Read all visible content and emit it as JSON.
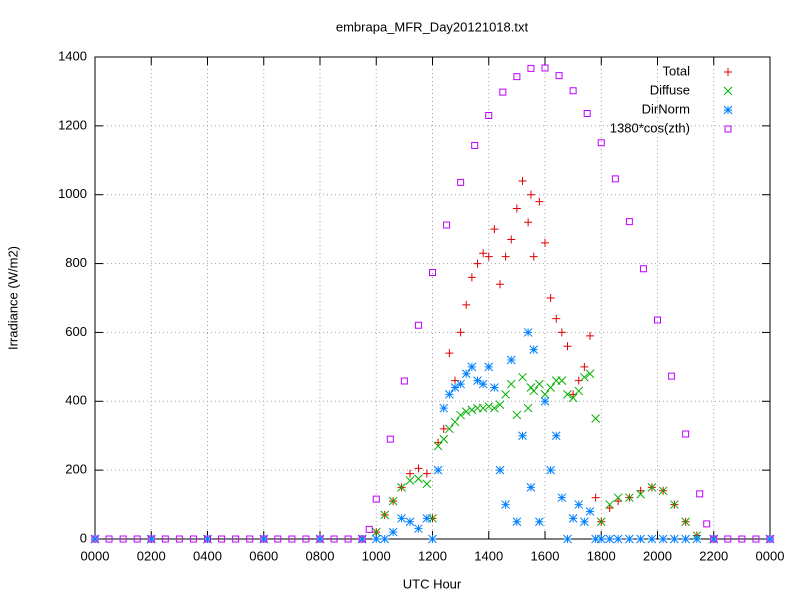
{
  "chart_data": {
    "type": "scatter",
    "title": "embrapa_MFR_Day20121018.txt",
    "x_label": "UTC Hour",
    "y_label": "Irradiance (W/m2)",
    "xlim": [
      0,
      24
    ],
    "ylim": [
      0,
      1400
    ],
    "xticks": [
      {
        "value": 0,
        "label": "0000"
      },
      {
        "value": 2,
        "label": "0200"
      },
      {
        "value": 4,
        "label": "0400"
      },
      {
        "value": 6,
        "label": "0600"
      },
      {
        "value": 8,
        "label": "0800"
      },
      {
        "value": 10,
        "label": "1000"
      },
      {
        "value": 12,
        "label": "1200"
      },
      {
        "value": 14,
        "label": "1400"
      },
      {
        "value": 16,
        "label": "1600"
      },
      {
        "value": 18,
        "label": "1800"
      },
      {
        "value": 20,
        "label": "2000"
      },
      {
        "value": 22,
        "label": "2200"
      },
      {
        "value": 24,
        "label": "0000"
      }
    ],
    "yticks": [
      0,
      200,
      400,
      600,
      800,
      1000,
      1200,
      1400
    ],
    "grid": true,
    "legend": "top right",
    "x": [
      0,
      2,
      4,
      6,
      8,
      9.5,
      10,
      10.3,
      10.6,
      10.9,
      11.2,
      11.5,
      11.8,
      12,
      12.2,
      12.4,
      12.6,
      12.8,
      13,
      13.2,
      13.4,
      13.6,
      13.8,
      14,
      14.2,
      14.4,
      14.6,
      14.8,
      15,
      15.2,
      15.4,
      15.5,
      15.6,
      15.8,
      16,
      16.2,
      16.4,
      16.6,
      16.8,
      17,
      17.2,
      17.4,
      17.6,
      17.8,
      18,
      18.3,
      18.6,
      19,
      19.4,
      19.8,
      20.2,
      20.6,
      21,
      21.4,
      22,
      24
    ],
    "series": [
      {
        "name": "Total",
        "color": "#e00000",
        "marker": "plus",
        "values": [
          0,
          0,
          0,
          0,
          0,
          0,
          20,
          70,
          110,
          150,
          190,
          205,
          190,
          60,
          280,
          320,
          540,
          460,
          600,
          680,
          760,
          800,
          830,
          820,
          900,
          740,
          820,
          870,
          960,
          1040,
          920,
          1000,
          820,
          980,
          860,
          700,
          640,
          600,
          560,
          420,
          460,
          500,
          590,
          120,
          50,
          90,
          110,
          120,
          140,
          150,
          140,
          100,
          50,
          10,
          0,
          0
        ]
      },
      {
        "name": "Diffuse",
        "color": "#00b000",
        "marker": "cross",
        "values": [
          0,
          0,
          0,
          0,
          0,
          0,
          20,
          70,
          110,
          150,
          170,
          175,
          160,
          60,
          270,
          290,
          320,
          340,
          360,
          370,
          375,
          380,
          380,
          385,
          380,
          390,
          420,
          450,
          360,
          470,
          380,
          440,
          430,
          450,
          420,
          440,
          460,
          460,
          420,
          410,
          430,
          470,
          480,
          350,
          50,
          100,
          120,
          120,
          130,
          150,
          140,
          100,
          50,
          10,
          0,
          0
        ]
      },
      {
        "name": "DirNorm",
        "color": "#0080ff",
        "marker": "star",
        "values": [
          0,
          0,
          0,
          0,
          0,
          0,
          0,
          0,
          20,
          60,
          50,
          30,
          60,
          0,
          200,
          380,
          420,
          440,
          450,
          480,
          500,
          460,
          450,
          500,
          440,
          200,
          100,
          520,
          50,
          300,
          600,
          150,
          550,
          50,
          400,
          200,
          300,
          120,
          0,
          60,
          100,
          50,
          80,
          0,
          0,
          0,
          0,
          0,
          0,
          0,
          0,
          0,
          0,
          0,
          0,
          0
        ]
      },
      {
        "name": "1380*cos(zth)",
        "color": "#c000ff",
        "marker": "square",
        "x": [
          0,
          0.5,
          1,
          1.5,
          2,
          2.5,
          3,
          3.5,
          4,
          4.5,
          5,
          5.5,
          6,
          6.5,
          7,
          7.5,
          8,
          8.5,
          9,
          9.5,
          9.75,
          10,
          10.5,
          11,
          11.5,
          12,
          12.5,
          13,
          13.5,
          14,
          14.5,
          15,
          15.5,
          16,
          16.5,
          17,
          17.5,
          18,
          18.5,
          19,
          19.5,
          20,
          20.5,
          21,
          21.5,
          21.75,
          22,
          22.5,
          23,
          23.5,
          24
        ],
        "values": [
          0,
          0,
          0,
          0,
          0,
          0,
          0,
          0,
          0,
          0,
          0,
          0,
          0,
          0,
          0,
          0,
          0,
          0,
          0,
          0,
          28,
          116,
          290,
          459,
          621,
          774,
          912,
          1036,
          1143,
          1230,
          1298,
          1343,
          1367,
          1368,
          1346,
          1302,
          1236,
          1151,
          1046,
          922,
          785,
          636,
          473,
          305,
          131,
          44,
          0,
          0,
          0,
          0,
          0
        ]
      }
    ]
  }
}
